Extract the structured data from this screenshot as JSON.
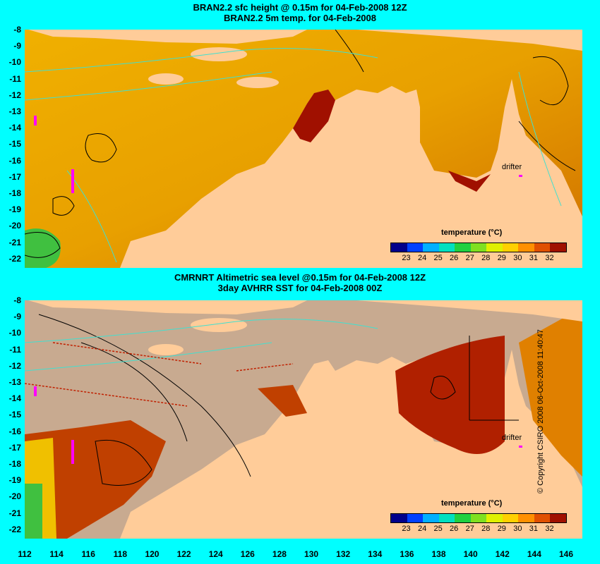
{
  "top_panel": {
    "title_line1": "BRAN2.2 sfc height @ 0.15m for 04-Feb-2008 12Z",
    "title_line2": "BRAN2.2 5m temp. for 04-Feb-2008"
  },
  "bottom_panel": {
    "title_line1": "CMRNRT Altimetric sea level  @0.15m  for 04-Feb-2008 12Z",
    "title_line2": "3day AVHRR SST for 04-Feb-2008 00Z"
  },
  "y_ticks": [
    "-8",
    "-9",
    "-10",
    "-11",
    "-12",
    "-13",
    "-14",
    "-15",
    "-16",
    "-17",
    "-18",
    "-19",
    "-20",
    "-21",
    "-22"
  ],
  "x_ticks": [
    "112",
    "114",
    "116",
    "118",
    "120",
    "122",
    "124",
    "126",
    "128",
    "130",
    "132",
    "134",
    "136",
    "138",
    "140",
    "142",
    "144",
    "146"
  ],
  "drifter_label": "drifter",
  "colorbar": {
    "title": "temperature (°C)",
    "ticks": [
      "23",
      "24",
      "25",
      "26",
      "27",
      "28",
      "29",
      "30",
      "31",
      "32"
    ],
    "colors": [
      "#00008b",
      "#0040ff",
      "#00b0ff",
      "#00e0c0",
      "#20d040",
      "#80e020",
      "#e0f000",
      "#ffd000",
      "#ff9000",
      "#e05000",
      "#a01000"
    ]
  },
  "copyright": "© Copyright CSIRO 2008   06-Oct-2008 11:40:47",
  "colors": {
    "background": "#00ffff",
    "land": "#ffcc99",
    "missing": "#c8aa90",
    "contour_height": "#000000",
    "contour_bathy": "#40e0d0",
    "drifter": "#ff00ff"
  }
}
